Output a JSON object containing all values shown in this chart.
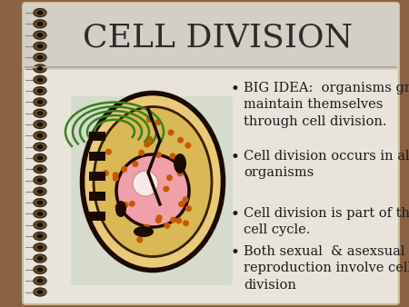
{
  "title": "CELL DIVISION",
  "title_fontsize": 26,
  "title_color": "#2c2c2c",
  "bg_outer": "#8B6343",
  "bg_slide": "#e8e4dc",
  "bg_header": "#d4cfc4",
  "bullet_points": [
    "BIG IDEA:  organisms grow, reproduce, &\nmaintain themselves\nthrough cell division.",
    "Cell division occurs in all\norganisms",
    "Cell division is part of the\ncell cycle.",
    "Both sexual  & asexsual\nreproduction involve cell\ndivision"
  ],
  "bullet_fontsize": 10.5,
  "bullet_color": "#1a1a1a",
  "spiral_color": "#3a2a18",
  "spiral_bg": "#6a5030",
  "header_line_color": "#b0a898"
}
